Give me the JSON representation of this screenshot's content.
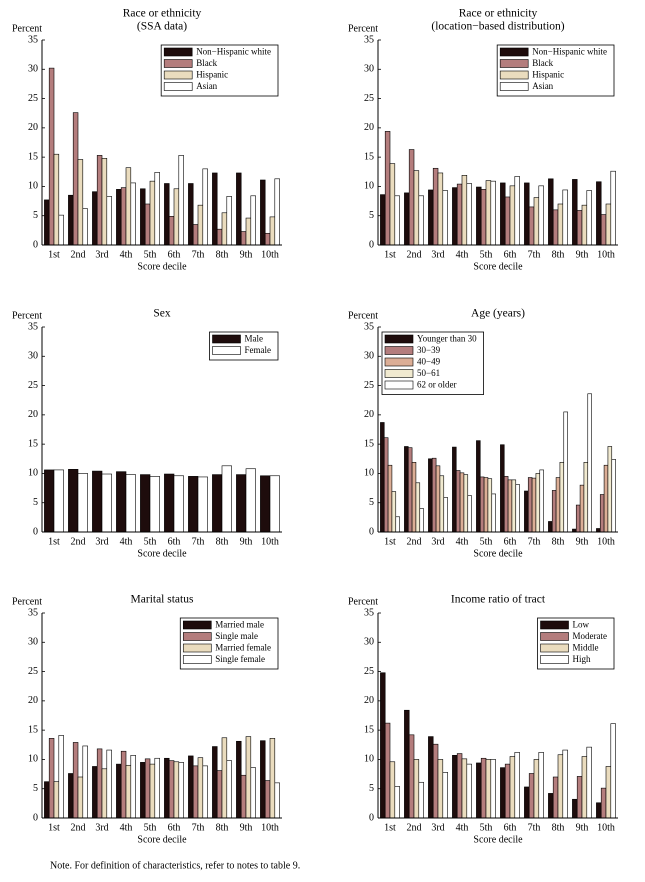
{
  "chart_data": [
    {
      "type": "bar",
      "title": "Race or ethnicity",
      "subtitle": "(SSA data)",
      "ylabel": "Percent",
      "xlabel": "Score decile",
      "categories": [
        "1st",
        "2nd",
        "3rd",
        "4th",
        "5th",
        "6th",
        "7th",
        "8th",
        "9th",
        "10th"
      ],
      "ylim": [
        0,
        35
      ],
      "yticks": [
        0,
        5,
        10,
        15,
        20,
        25,
        30,
        35
      ],
      "legend": "upper right",
      "series": [
        {
          "name": "Non−Hispanic white",
          "color": "#1e0c0c",
          "values": [
            7.7,
            8.5,
            9.1,
            9.5,
            9.6,
            10.5,
            10.5,
            12.3,
            12.3,
            11.1
          ]
        },
        {
          "name": "Black",
          "color": "#b47d7d",
          "values": [
            30.2,
            22.6,
            15.3,
            9.8,
            7.0,
            4.9,
            3.5,
            2.7,
            2.3,
            2.0
          ]
        },
        {
          "name": "Hispanic",
          "color": "#eadcbe",
          "values": [
            15.5,
            14.6,
            14.8,
            13.2,
            10.9,
            9.6,
            6.8,
            5.5,
            4.6,
            4.8
          ]
        },
        {
          "name": "Asian",
          "color": "#ffffff",
          "values": [
            5.1,
            6.2,
            8.3,
            10.6,
            12.4,
            15.3,
            13.0,
            8.3,
            8.4,
            11.3
          ]
        }
      ]
    },
    {
      "type": "bar",
      "title": "Race or ethnicity",
      "subtitle": "(location−based distribution)",
      "ylabel": "Percent",
      "xlabel": "Score decile",
      "categories": [
        "1st",
        "2nd",
        "3rd",
        "4th",
        "5th",
        "6th",
        "7th",
        "8th",
        "9th",
        "10th"
      ],
      "ylim": [
        0,
        35
      ],
      "yticks": [
        0,
        5,
        10,
        15,
        20,
        25,
        30,
        35
      ],
      "legend": "upper right",
      "series": [
        {
          "name": "Non−Hispanic white",
          "color": "#1e0c0c",
          "values": [
            8.6,
            8.9,
            9.4,
            9.8,
            9.9,
            10.6,
            10.6,
            11.3,
            11.2,
            10.8
          ]
        },
        {
          "name": "Black",
          "color": "#b47d7d",
          "values": [
            19.4,
            16.3,
            13.1,
            10.4,
            9.5,
            8.2,
            6.5,
            6.0,
            5.9,
            5.2
          ]
        },
        {
          "name": "Hispanic",
          "color": "#eadcbe",
          "values": [
            13.9,
            12.7,
            12.3,
            11.9,
            11.0,
            10.1,
            8.1,
            7.0,
            6.8,
            7.0
          ]
        },
        {
          "name": "Asian",
          "color": "#ffffff",
          "values": [
            8.4,
            8.4,
            9.3,
            10.5,
            10.9,
            11.7,
            10.1,
            9.4,
            9.3,
            12.6
          ]
        }
      ]
    },
    {
      "type": "bar",
      "title": "Sex",
      "ylabel": "Percent",
      "xlabel": "Score decile",
      "categories": [
        "1st",
        "2nd",
        "3rd",
        "4th",
        "5th",
        "6th",
        "7th",
        "8th",
        "9th",
        "10th"
      ],
      "ylim": [
        0,
        35
      ],
      "yticks": [
        0,
        5,
        10,
        15,
        20,
        25,
        30,
        35
      ],
      "legend": "upper right",
      "series": [
        {
          "name": "Male",
          "color": "#1e0c0c",
          "values": [
            10.6,
            10.7,
            10.4,
            10.3,
            9.8,
            9.9,
            9.5,
            9.8,
            9.8,
            9.6
          ]
        },
        {
          "name": "Female",
          "color": "#ffffff",
          "values": [
            10.6,
            10.0,
            9.9,
            9.8,
            9.5,
            9.6,
            9.4,
            11.3,
            10.8,
            9.6
          ]
        }
      ]
    },
    {
      "type": "bar",
      "title": "Age (years)",
      "ylabel": "Percent",
      "xlabel": "Score decile",
      "categories": [
        "1st",
        "2nd",
        "3rd",
        "4th",
        "5th",
        "6th",
        "7th",
        "8th",
        "9th",
        "10th"
      ],
      "ylim": [
        0,
        35
      ],
      "yticks": [
        0,
        5,
        10,
        15,
        20,
        25,
        30,
        35
      ],
      "legend": "upper left",
      "series": [
        {
          "name": "Younger than 30",
          "color": "#1e0c0c",
          "values": [
            18.7,
            14.6,
            12.5,
            14.5,
            15.6,
            14.9,
            7.0,
            1.8,
            0.5,
            0.6
          ]
        },
        {
          "name": "30−39",
          "color": "#b47d7d",
          "values": [
            16.1,
            14.4,
            12.6,
            10.5,
            9.4,
            9.5,
            9.3,
            7.1,
            4.6,
            6.4
          ]
        },
        {
          "name": "40−49",
          "color": "#dcae96",
          "values": [
            11.4,
            11.9,
            11.3,
            10.1,
            9.3,
            8.9,
            9.2,
            9.3,
            8.0,
            11.4
          ]
        },
        {
          "name": "50−61",
          "color": "#f1ead0",
          "values": [
            6.9,
            8.4,
            9.6,
            9.8,
            9.1,
            8.9,
            10.0,
            11.9,
            11.9,
            14.6
          ]
        },
        {
          "name": "62 or older",
          "color": "#ffffff",
          "values": [
            2.6,
            4.0,
            5.9,
            6.2,
            6.5,
            8.1,
            10.6,
            20.5,
            23.6,
            12.4
          ]
        }
      ]
    },
    {
      "type": "bar",
      "title": "Marital status",
      "ylabel": "Percent",
      "xlabel": "Score decile",
      "categories": [
        "1st",
        "2nd",
        "3rd",
        "4th",
        "5th",
        "6th",
        "7th",
        "8th",
        "9th",
        "10th"
      ],
      "ylim": [
        0,
        35
      ],
      "yticks": [
        0,
        5,
        10,
        15,
        20,
        25,
        30,
        35
      ],
      "legend": "upper right",
      "series": [
        {
          "name": "Married male",
          "color": "#1e0c0c",
          "values": [
            6.2,
            7.6,
            8.8,
            9.2,
            9.5,
            10.2,
            10.6,
            12.2,
            13.1,
            13.2
          ]
        },
        {
          "name": "Single male",
          "color": "#b47d7d",
          "values": [
            13.6,
            12.9,
            11.8,
            11.4,
            10.1,
            9.8,
            8.9,
            8.1,
            7.3,
            6.4
          ]
        },
        {
          "name": "Married female",
          "color": "#eadcbe",
          "values": [
            6.2,
            7.0,
            8.4,
            9.0,
            9.2,
            9.6,
            10.3,
            13.7,
            13.9,
            13.6
          ]
        },
        {
          "name": "Single female",
          "color": "#ffffff",
          "values": [
            14.1,
            12.3,
            11.6,
            10.7,
            10.2,
            9.5,
            8.9,
            9.8,
            8.6,
            6.0
          ]
        }
      ]
    },
    {
      "type": "bar",
      "title": "Income ratio of tract",
      "ylabel": "Percent",
      "xlabel": "Score decile",
      "categories": [
        "1st",
        "2nd",
        "3rd",
        "4th",
        "5th",
        "6th",
        "7th",
        "8th",
        "9th",
        "10th"
      ],
      "ylim": [
        0,
        35
      ],
      "yticks": [
        0,
        5,
        10,
        15,
        20,
        25,
        30,
        35
      ],
      "legend": "upper right",
      "series": [
        {
          "name": "Low",
          "color": "#1e0c0c",
          "values": [
            24.8,
            18.4,
            13.9,
            10.7,
            9.4,
            8.6,
            5.3,
            4.2,
            3.2,
            2.6
          ]
        },
        {
          "name": "Moderate",
          "color": "#b47d7d",
          "values": [
            16.2,
            14.2,
            12.6,
            11.0,
            10.2,
            9.2,
            7.6,
            7.0,
            7.1,
            5.1
          ]
        },
        {
          "name": "Middle",
          "color": "#eadcbe",
          "values": [
            9.6,
            10.0,
            10.0,
            10.1,
            10.0,
            10.5,
            10.0,
            10.8,
            10.5,
            8.8
          ]
        },
        {
          "name": "High",
          "color": "#ffffff",
          "values": [
            5.4,
            6.1,
            7.8,
            9.2,
            10.0,
            11.2,
            11.2,
            11.6,
            12.1,
            16.1
          ]
        }
      ]
    }
  ],
  "note": "Note. For definition of characteristics, refer to notes to table 9."
}
